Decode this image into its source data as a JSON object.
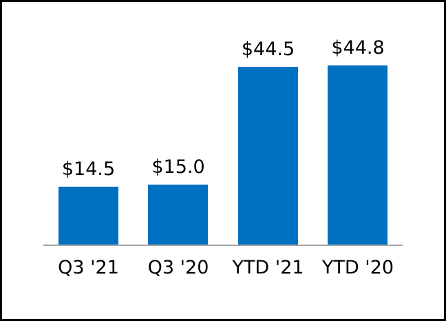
{
  "chart_data": {
    "type": "bar",
    "title": "",
    "xlabel": "",
    "ylabel": "",
    "categories": [
      "Q3 '21",
      "Q3 '20",
      "YTD '21",
      "YTD '20"
    ],
    "values": [
      14.5,
      15.0,
      44.5,
      44.8
    ],
    "data_labels": [
      "$14.5",
      "$15.0",
      "$44.5",
      "$44.8"
    ],
    "ylim": [
      0,
      50
    ],
    "grid": false,
    "legend": false,
    "axes_visible": "x-baseline-only",
    "data_labels_position": "above-bars",
    "bar_color": "#0070C0",
    "baseline_color": "#A6A6A6",
    "text_color": "#000000",
    "frame_border_color": "#000000",
    "background_color": "#FFFFFF"
  }
}
